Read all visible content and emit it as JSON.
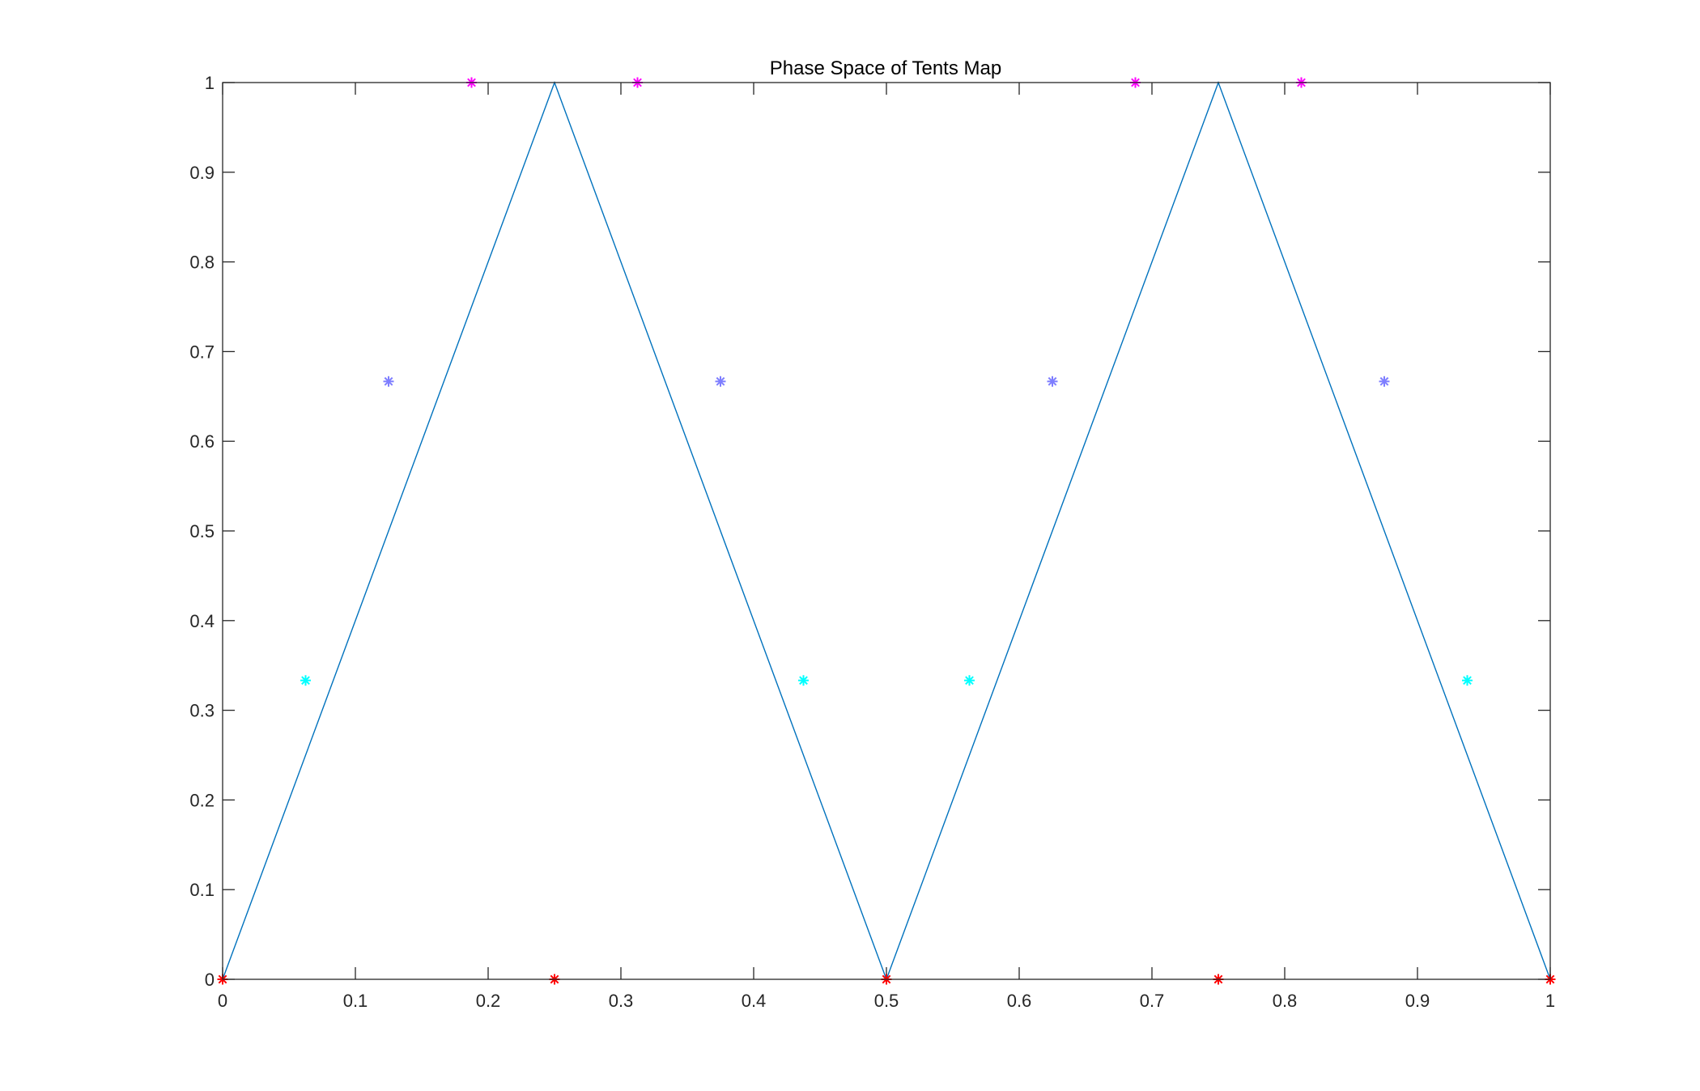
{
  "chart_data": {
    "type": "line",
    "title": "Phase Space of Tents Map",
    "xlabel": "",
    "ylabel": "",
    "xlim": [
      0,
      1
    ],
    "ylim": [
      0,
      1
    ],
    "xticks": [
      0,
      0.1,
      0.2,
      0.3,
      0.4,
      0.5,
      0.6,
      0.7,
      0.8,
      0.9,
      1
    ],
    "xtick_labels": [
      "0",
      "0.1",
      "0.2",
      "0.3",
      "0.4",
      "0.5",
      "0.6",
      "0.7",
      "0.8",
      "0.9",
      "1"
    ],
    "yticks": [
      0,
      0.1,
      0.2,
      0.3,
      0.4,
      0.5,
      0.6,
      0.7,
      0.8,
      0.9,
      1
    ],
    "ytick_labels": [
      "0",
      "0.1",
      "0.2",
      "0.3",
      "0.4",
      "0.5",
      "0.6",
      "0.7",
      "0.8",
      "0.9",
      "1"
    ],
    "grid": false,
    "legend": "none",
    "line": {
      "color": "#0072bd",
      "x": [
        0,
        0.25,
        0.5,
        0.75,
        1
      ],
      "y": [
        0,
        1,
        0,
        1,
        0
      ]
    },
    "scatter_series": [
      {
        "color": "#ff0000",
        "marker": "asterisk",
        "x": [
          0,
          0.25,
          0.5,
          0.75,
          1
        ],
        "y": [
          0,
          0,
          0,
          0,
          0
        ]
      },
      {
        "color": "#00ffff",
        "marker": "asterisk",
        "x": [
          0.0625,
          0.4375,
          0.5625,
          0.9375
        ],
        "y": [
          0.3333,
          0.3333,
          0.3333,
          0.3333
        ]
      },
      {
        "color": "#7f7fff",
        "marker": "asterisk",
        "x": [
          0.125,
          0.375,
          0.625,
          0.875
        ],
        "y": [
          0.6667,
          0.6667,
          0.6667,
          0.6667
        ]
      },
      {
        "color": "#ff00ff",
        "marker": "asterisk",
        "x": [
          0.1875,
          0.3125,
          0.6875,
          0.8125
        ],
        "y": [
          1,
          1,
          1,
          1
        ]
      }
    ]
  }
}
